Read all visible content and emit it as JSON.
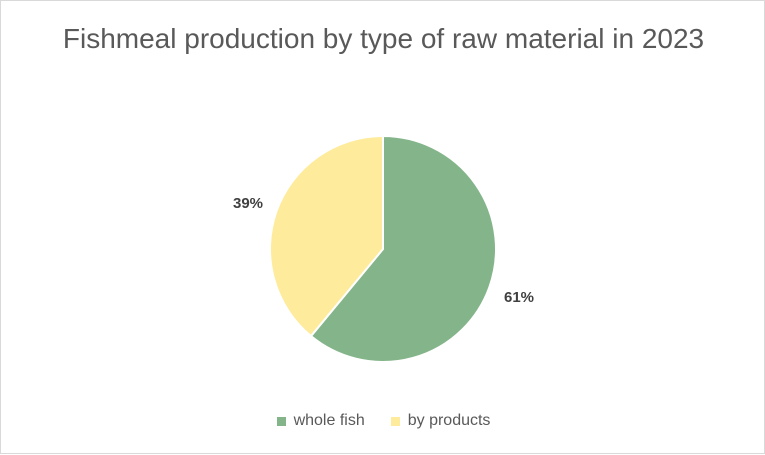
{
  "chart_data": {
    "type": "pie",
    "title": "Fishmeal production by type of raw material in 2023",
    "categories": [
      "whole fish",
      "by products"
    ],
    "values": [
      61,
      39
    ],
    "labels": [
      "61%",
      "39%"
    ],
    "colors": [
      "#84b58a",
      "#feeb9b"
    ],
    "legend_position": "bottom"
  }
}
